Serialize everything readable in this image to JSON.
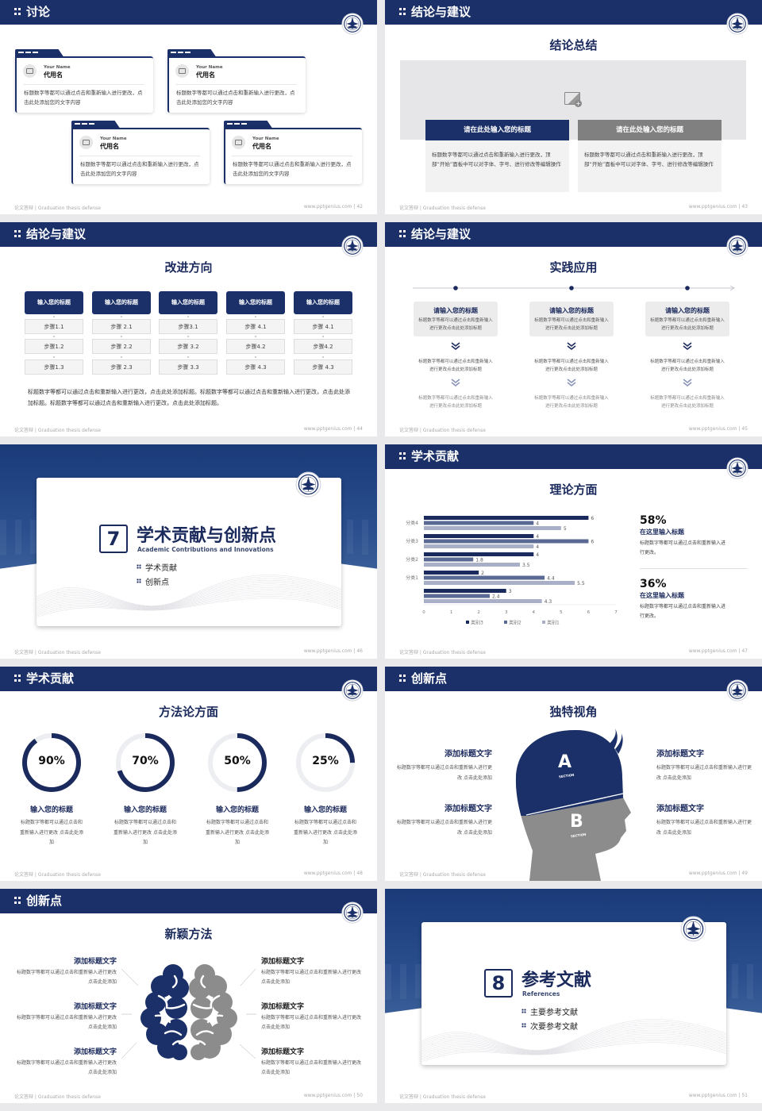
{
  "footer_left": "论文答辩 | Graduation thesis defense",
  "footer_site": "www.pptgenius.com",
  "colors": {
    "navy": "#1b3068",
    "dark_navy": "#1b2a5c",
    "gray": "#8c8c8c",
    "light_gray": "#f2f2f2"
  },
  "slides": [
    {
      "page": "42",
      "header": "讨论",
      "cards": [
        {
          "name_en": "Your Name",
          "name": "代用名",
          "text": "标题数字等都可以通过点击和重新输入进行更改，点击此处添加您的文字内容"
        },
        {
          "name_en": "Your Name",
          "name": "代用名",
          "text": "标题数字等都可以通过点击和重新输入进行更改，点击此处添加您的文字内容"
        },
        {
          "name_en": "Your Name",
          "name": "代用名",
          "text": "标题数字等都可以通过点击和重新输入进行更改，点击此处添加您的文字内容"
        },
        {
          "name_en": "Your Name",
          "name": "代用名",
          "text": "标题数字等都可以通过点击和重新输入进行更改，点击此处添加您的文字内容"
        }
      ]
    },
    {
      "page": "43",
      "header": "结论与建议",
      "title": "结论总结",
      "panels": [
        {
          "title": "请在此处输入您的标题",
          "text": "标题数字等都可以通过点击和重新输入进行更改，顶部“开始”面板中可以对字体、字号、进行修改等编辑操作"
        },
        {
          "title": "请在此处输入您的标题",
          "text": "标题数字等都可以通过点击和重新输入进行更改，顶部“开始”面板中可以对字体、字号、进行修改等编辑操作"
        }
      ]
    },
    {
      "page": "44",
      "header": "结论与建议",
      "title": "改进方向",
      "columns": [
        {
          "title": "输入您的标题",
          "steps": [
            "步骤1.1",
            "步骤1.2",
            "步骤1.3"
          ]
        },
        {
          "title": "输入您的标题",
          "steps": [
            "步骤 2.1",
            "步骤 2.2",
            "步骤 2.3"
          ]
        },
        {
          "title": "输入您的标题",
          "steps": [
            "步骤3.1",
            "步骤 3.2",
            "步骤 3.3"
          ]
        },
        {
          "title": "输入您的标题",
          "steps": [
            "步骤 4.1",
            "步骤4.2",
            "步骤 4.3"
          ]
        },
        {
          "title": "输入您的标题",
          "steps": [
            "步骤 4.1",
            "步骤4.2",
            "步骤 4.3"
          ]
        }
      ],
      "paragraph": "标题数字等都可以通过点击和重新输入进行更改，点击此处添加标题。标题数字等都可以通过点击和重新输入进行更改，点击此处添加标题。标题数字等都可以通过点击和重新输入进行更改，点击此处添加标题。"
    },
    {
      "page": "45",
      "header": "结论与建议",
      "title": "实践应用",
      "items": [
        {
          "title": "请输入您的标题",
          "desc": "标题数字等都可以通过点击和重新输入进行更改点击此处添加标题",
          "step1": "标题数字等都可以通过点击和重新输入进行更改点击此处添加标题",
          "step2": "标题数字等都可以通过点击和重新输入进行更改点击此处添加标题"
        },
        {
          "title": "请输入您的标题",
          "desc": "标题数字等都可以通过点击和重新输入进行更改点击此处添加标题",
          "step1": "标题数字等都可以通过点击和重新输入进行更改点击此处添加标题",
          "step2": "标题数字等都可以通过点击和重新输入进行更改点击此处添加标题"
        },
        {
          "title": "请输入您的标题",
          "desc": "标题数字等都可以通过点击和重新输入进行更改点击此处添加标题",
          "step1": "标题数字等都可以通过点击和重新输入进行更改点击此处添加标题",
          "step2": "标题数字等都可以通过点击和重新输入进行更改点击此处添加标题"
        }
      ]
    },
    {
      "page": "46",
      "number": "7",
      "title": "学术贡献与创新点",
      "subtitle": "Academic Contributions and Innovations",
      "bullets": [
        "学术贡献",
        "创新点"
      ]
    },
    {
      "page": "47",
      "header": "学术贡献",
      "title": "理论方面",
      "stats": [
        {
          "value": "58%",
          "title": "在这里输入标题",
          "text": "标题数字等都可以通过点击和重新输入进行更改。"
        },
        {
          "value": "36%",
          "title": "在这里输入标题",
          "text": "标题数字等都可以通过点击和重新输入进行更改。"
        }
      ]
    },
    {
      "page": "48",
      "header": "学术贡献",
      "title": "方法论方面",
      "rings": [
        {
          "percent": 90,
          "label": "90%",
          "title": "输入您的标题",
          "text": "标题数字等都可以通过点击和重新输入进行更改 点击此处添加"
        },
        {
          "percent": 70,
          "label": "70%",
          "title": "输入您的标题",
          "text": "标题数字等都可以通过点击和重新输入进行更改 点击此处添加"
        },
        {
          "percent": 50,
          "label": "50%",
          "title": "输入您的标题",
          "text": "标题数字等都可以通过点击和重新输入进行更改 点击此处添加"
        },
        {
          "percent": 25,
          "label": "25%",
          "title": "输入您的标题",
          "text": "标题数字等都可以通过点击和重新输入进行更改 点击此处添加"
        }
      ]
    },
    {
      "page": "49",
      "header": "创新点",
      "title": "独特视角",
      "head": {
        "a": "A",
        "b": "B",
        "section": "SECTION"
      },
      "items": [
        {
          "title": "添加标题文字",
          "text": "标题数字等都可以通过点击和重新输入进行更改 点击此处添加"
        },
        {
          "title": "添加标题文字",
          "text": "标题数字等都可以通过点击和重新输入进行更改 点击此处添加"
        },
        {
          "title": "添加标题文字",
          "text": "标题数字等都可以通过点击和重新输入进行更改 点击此处添加"
        },
        {
          "title": "添加标题文字",
          "text": "标题数字等都可以通过点击和重新输入进行更改 点击此处添加"
        }
      ]
    },
    {
      "page": "50",
      "header": "创新点",
      "title": "新颖方法",
      "items": [
        {
          "title": "添加标题文字",
          "text": "标题数字等都可以通过点击和重新输入进行更改 点击此处添加"
        },
        {
          "title": "添加标题文字",
          "text": "标题数字等都可以通过点击和重新输入进行更改 点击此处添加"
        },
        {
          "title": "添加标题文字",
          "text": "标题数字等都可以通过点击和重新输入进行更改 点击此处添加"
        },
        {
          "title": "添加标题文字",
          "text": "标题数字等都可以通过点击和重新输入进行更改 点击此处添加"
        },
        {
          "title": "添加标题文字",
          "text": "标题数字等都可以通过点击和重新输入进行更改 点击此处添加"
        },
        {
          "title": "添加标题文字",
          "text": "标题数字等都可以通过点击和重新输入进行更改 点击此处添加"
        }
      ]
    },
    {
      "page": "51",
      "number": "8",
      "title": "参考文献",
      "subtitle": "References",
      "bullets": [
        "主要参考文献",
        "次要参考文献"
      ]
    }
  ],
  "chart_data": {
    "type": "bar",
    "orientation": "horizontal",
    "categories": [
      "分类4",
      "分类3",
      "分类2",
      "分类1",
      ""
    ],
    "series": [
      {
        "name": "类别3",
        "color": "#1b2a5c",
        "values": [
          6,
          4,
          4,
          2,
          3
        ]
      },
      {
        "name": "类别2",
        "color": "#5a6a94",
        "values": [
          4,
          6,
          1.8,
          4.4,
          2.4
        ]
      },
      {
        "name": "类别1",
        "color": "#a8afc7",
        "values": [
          5,
          4,
          3.5,
          5.5,
          4.3
        ]
      }
    ],
    "xlim": [
      0,
      7
    ],
    "xticks": [
      0,
      1,
      2,
      3,
      4,
      5,
      6,
      7
    ],
    "data_labels": true,
    "legend": "bottom",
    "grid": false
  }
}
